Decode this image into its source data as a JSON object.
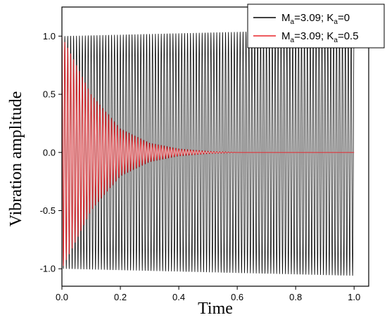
{
  "chart_data": {
    "type": "line",
    "title": "",
    "xlabel": "Time",
    "ylabel": "Vibration amplitude",
    "xlim": [
      0,
      1.05
    ],
    "ylim": [
      -1.15,
      1.25
    ],
    "x_ticks": [
      "0.0",
      "0.2",
      "0.4",
      "0.6",
      "0.8",
      "1.0"
    ],
    "y_ticks": [
      "-1.0",
      "-0.5",
      "0.0",
      "0.5",
      "1.0"
    ],
    "legend_position": "top-right",
    "grid": false,
    "series": [
      {
        "name": "Ma=3.09; Ka=0",
        "name_parts": {
          "m": "M",
          "msub": "a",
          "mval": "=3.09; ",
          "k": "K",
          "ksub": "a",
          "kval": "=0"
        },
        "color": "#000000",
        "description_points": {
          "x": [
            0,
            0.25,
            0.5,
            0.75,
            1.0
          ],
          "envelope": [
            1.0,
            1.015,
            1.03,
            1.045,
            1.06
          ]
        },
        "oscillation_cycles": 100
      },
      {
        "name": "Ma=3.09; Ka=0.5",
        "name_parts": {
          "m": "M",
          "msub": "a",
          "mval": "=3.09; ",
          "k": "K",
          "ksub": "a",
          "kval": "=0.5"
        },
        "color": "#e8252a",
        "description_points": {
          "x": [
            0,
            0.1,
            0.2,
            0.3,
            0.4,
            0.5,
            0.6
          ],
          "envelope": [
            1.0,
            0.5,
            0.2,
            0.08,
            0.03,
            0.01,
            0.0
          ]
        },
        "oscillation_cycles": 100
      }
    ]
  }
}
